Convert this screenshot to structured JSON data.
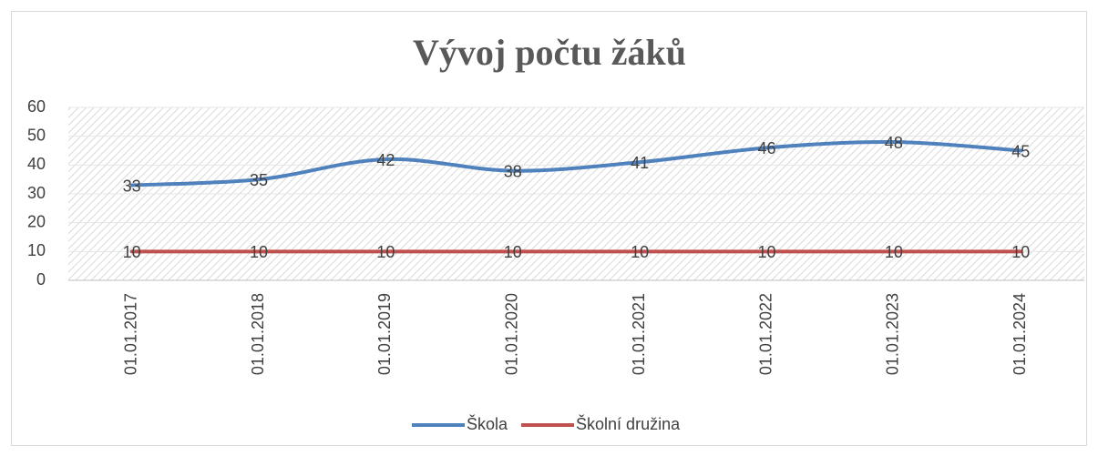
{
  "chart_data": {
    "type": "line",
    "title": "Vývoj počtu žáků",
    "categories": [
      "01.01.2017",
      "01.01.2018",
      "01.01.2019",
      "01.01.2020",
      "01.01.2021",
      "01.01.2022",
      "01.01.2023",
      "01.01.2024"
    ],
    "series": [
      {
        "name": "Škola",
        "color": "#4f81bd",
        "values": [
          33,
          35,
          42,
          38,
          41,
          46,
          48,
          45
        ]
      },
      {
        "name": "Školní družina",
        "color": "#c0504d",
        "values": [
          10,
          10,
          10,
          10,
          10,
          10,
          10,
          10
        ]
      }
    ],
    "ylim": [
      0,
      60
    ],
    "yticks": [
      0,
      10,
      20,
      30,
      40,
      50,
      60
    ],
    "grid": true,
    "smooth": true,
    "data_labels": true,
    "legend": "bottom"
  }
}
